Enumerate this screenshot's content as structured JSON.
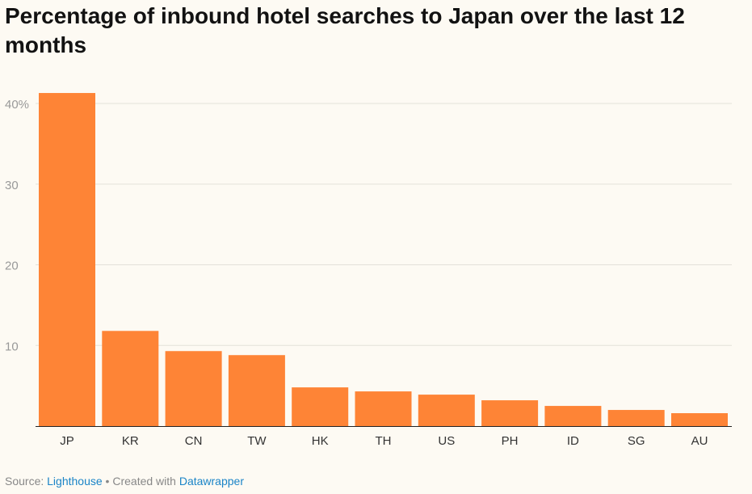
{
  "title": "Percentage of inbound hotel searches to Japan over the last 12 months",
  "footer": {
    "source_label": "Source:",
    "source_link": "Lighthouse",
    "separator": "•",
    "created_label": "Created with",
    "created_link": "Datawrapper"
  },
  "colors": {
    "bar": "#fe8436",
    "grid": "#e4e1da",
    "axis": "#222222",
    "tick_label": "#999999",
    "category_label": "#333333",
    "background": "#fdfaf3"
  },
  "chart_data": {
    "type": "bar",
    "title": "Percentage of inbound hotel searches to Japan over the last 12 months",
    "xlabel": "",
    "ylabel": "",
    "categories": [
      "JP",
      "KR",
      "CN",
      "TW",
      "HK",
      "TH",
      "US",
      "PH",
      "ID",
      "SG",
      "AU"
    ],
    "values": [
      41.3,
      11.8,
      9.3,
      8.8,
      4.8,
      4.3,
      3.9,
      3.2,
      2.5,
      2.0,
      1.6
    ],
    "ylim": [
      0,
      40
    ],
    "yticks": [
      0,
      10,
      20,
      30,
      40
    ],
    "ytick_labels": [
      "",
      "10",
      "20",
      "30",
      "40%"
    ],
    "grid": true,
    "legend": "none"
  }
}
